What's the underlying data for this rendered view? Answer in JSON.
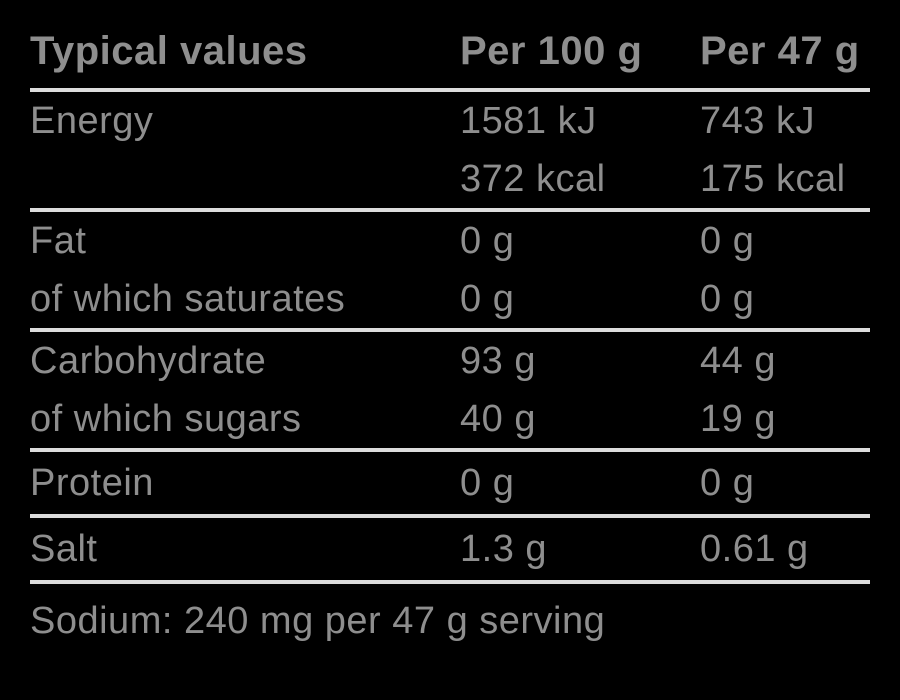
{
  "theme": {
    "background_color": "#000000",
    "text_color": "#8e8e8e",
    "rule_color": "#dcdcdc"
  },
  "table": {
    "header": {
      "label": "Typical values",
      "col_per_100": "Per 100 g",
      "col_per_47": "Per 47 g"
    },
    "groups": [
      {
        "rows": [
          {
            "label": "Energy",
            "per100": "1581 kJ",
            "per47": "743 kJ"
          },
          {
            "label": "",
            "per100": "372 kcal",
            "per47": "175 kcal"
          }
        ]
      },
      {
        "rows": [
          {
            "label": "Fat",
            "per100": "0 g",
            "per47": "0 g"
          },
          {
            "label": "of which saturates",
            "per100": "0 g",
            "per47": "0 g"
          }
        ]
      },
      {
        "rows": [
          {
            "label": "Carbohydrate",
            "per100": "93 g",
            "per47": "44 g"
          },
          {
            "label": "of which sugars",
            "per100": "40 g",
            "per47": "19 g"
          }
        ]
      },
      {
        "rows": [
          {
            "label": "Protein",
            "per100": "0 g",
            "per47": "0 g"
          }
        ]
      },
      {
        "rows": [
          {
            "label": "Salt",
            "per100": "1.3 g",
            "per47": "0.61 g"
          }
        ]
      }
    ],
    "footnote": "Sodium: 240 mg per 47 g serving"
  }
}
